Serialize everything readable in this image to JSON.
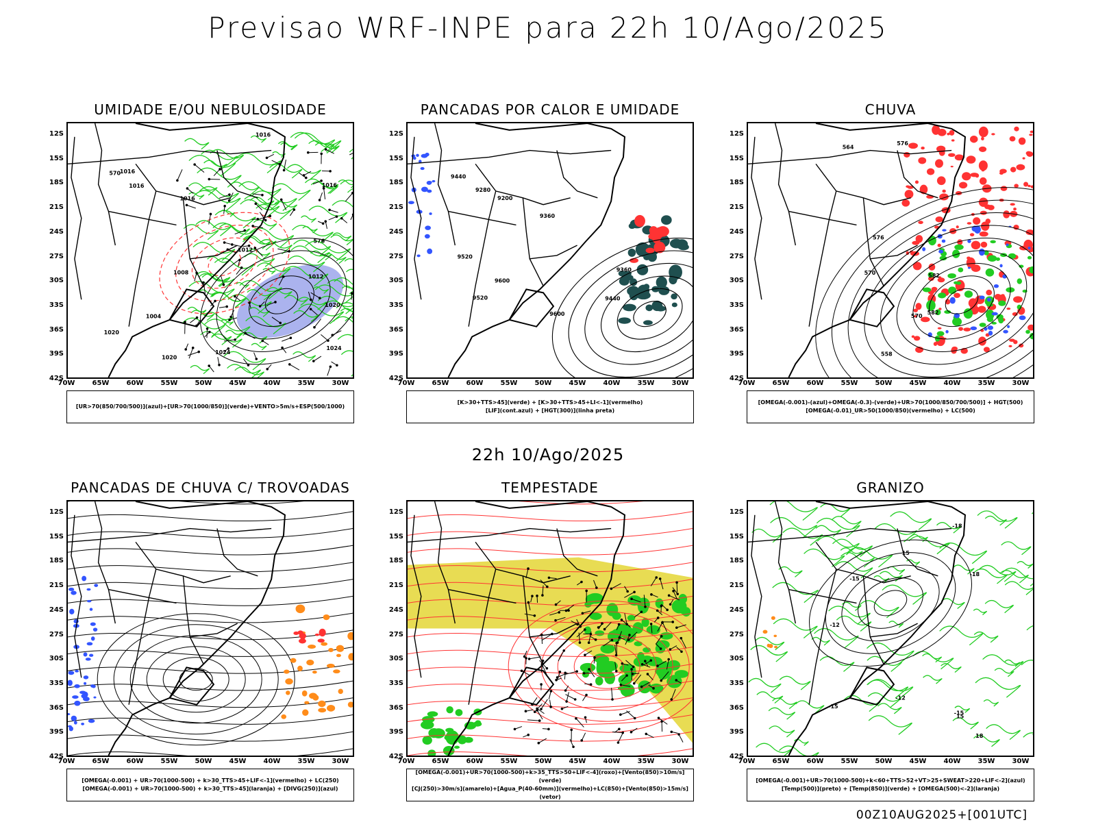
{
  "title": "Previsao WRF-INPE  para 22h 10/Ago/2025",
  "subtitle": "22h 10/Ago/2025",
  "footer": "00Z10AUG2025+[001UTC]",
  "lat_labels": [
    "12S",
    "15S",
    "18S",
    "21S",
    "24S",
    "27S",
    "30S",
    "33S",
    "36S",
    "39S",
    "42S"
  ],
  "lon_labels": [
    "70W",
    "65W",
    "60W",
    "55W",
    "50W",
    "45W",
    "40W",
    "35W",
    "30W"
  ],
  "colors": {
    "red": "#ff3333",
    "green": "#22cc22",
    "blue": "#3355ff",
    "yellow": "#e6d840",
    "orange": "#ff8c1a",
    "teal": "#1f4f4f"
  },
  "panels": [
    {
      "title": "UMIDADE E/OU NEBULOSIDADE",
      "legend": [
        "[UR>70(850/700/500)](azul)+[UR>70(1000/850)](verde)+VENTO>5m/s+ESP(500/1000)"
      ]
    },
    {
      "title": "PANCADAS POR CALOR E UMIDADE",
      "legend": [
        "[K>30+TTS>45](verde) + [K>30+TTS>45+LI<-1](vermelho)",
        "[LIF](cont.azul) + [HGT(300)](linha preta)"
      ]
    },
    {
      "title": "CHUVA",
      "legend": [
        "[OMEGA(-0.001)-(azul)+OMEGA(-0.3)-(verde)+UR>70(1000/850/700/500)] + HGT(500)",
        "[OMEGA(-0.01)_UR>50(1000/850)(vermelho) + LC(500)"
      ]
    },
    {
      "title": "PANCADAS DE CHUVA C/ TROVOADAS",
      "legend": [
        "[OMEGA(-0.001) + UR>70(1000-500) + k>30_TTS>45+LIF<-1](vermelho) + LC(250)",
        "[OMEGA(-0.001) + UR>70(1000-500) + k>30_TTS>45](laranja) + [DIVG(250)](azul)"
      ]
    },
    {
      "title": "TEMPESTADE",
      "legend": [
        "[OMEGA(-0.001)+UR>70(1000-500)+k>35_TTS>50+LIF<-4](roxo)+[Vento(850)>10m/s](verde)",
        "[CJ(250)>30m/s](amarelo)+[Agua_P(40-60mm)](vermelho)+LC(850)+[Vento(850)>15m/s](vetor)"
      ]
    },
    {
      "title": "GRANIZO",
      "legend": [
        "[OMEGA(-0.001)+UR>70(1000-500)+k<60+TTS>52+VT>25+SWEAT>220+LIF<-2](azul)",
        "[Temp(500)](preto) + [Temp(850)](verde) + [OMEGA(500)<-2](laranja)"
      ]
    }
  ],
  "contour_labels": {
    "p1": [
      "1016",
      "1016",
      "1016",
      "1020",
      "1024",
      "1020",
      "1016",
      "1012",
      "1008",
      "1004",
      "1012",
      "1016",
      "1020",
      "1024",
      "570",
      "576"
    ],
    "p2": [
      "9600",
      "9520",
      "9440",
      "9360",
      "9280",
      "9200",
      "9520",
      "9440",
      "9360",
      "9600"
    ],
    "p3": [
      "582",
      "576",
      "570",
      "564",
      "558",
      "582",
      "576",
      "570"
    ],
    "p6": [
      "-15",
      "-12",
      "-18",
      "-15",
      "-12",
      "-18",
      "-15",
      "15",
      "15",
      "18"
    ]
  }
}
